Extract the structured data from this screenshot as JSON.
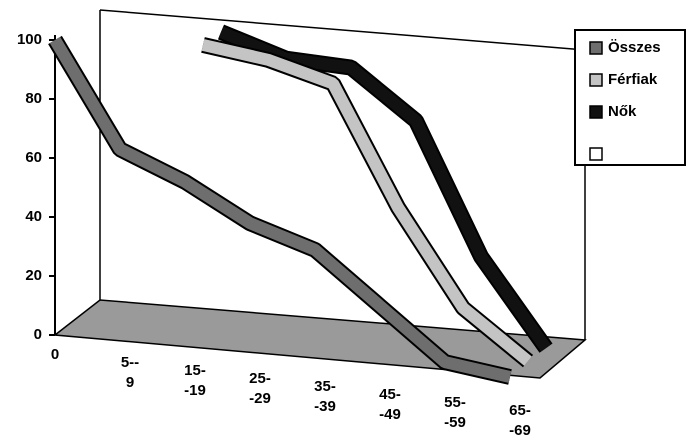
{
  "chart_data": {
    "type": "line3d",
    "categories": [
      "0",
      "5--\n9",
      "15-\n-19",
      "25-\n-29",
      "35-\n-39",
      "45-\n-49",
      "55-\n-59",
      "65-\n-69"
    ],
    "series": [
      {
        "name": "Összes",
        "color": "#6e6e6e",
        "values": [
          100,
          65,
          56,
          44,
          37,
          20,
          3,
          0
        ]
      },
      {
        "name": "Férfiak",
        "color": "#c4c4c4",
        "values": [
          null,
          null,
          99,
          96,
          90,
          50,
          18,
          2
        ]
      },
      {
        "name": "Nők",
        "color": "#111111",
        "values": [
          null,
          null,
          100,
          93,
          92,
          76,
          32,
          3
        ]
      }
    ],
    "ylim": [
      0,
      100
    ],
    "yticks": [
      0,
      20,
      40,
      60,
      80,
      100
    ],
    "legend": "right"
  }
}
